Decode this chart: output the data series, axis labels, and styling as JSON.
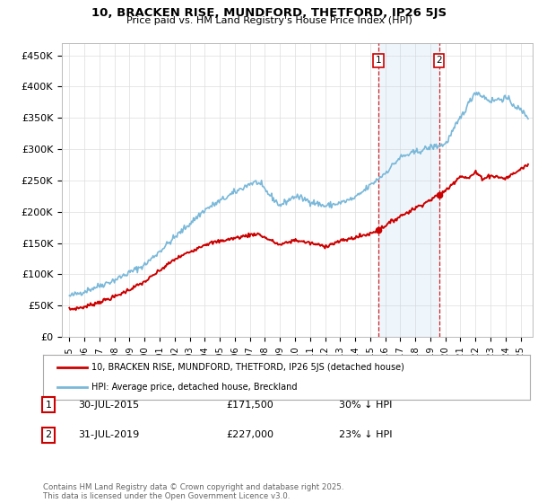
{
  "title": "10, BRACKEN RISE, MUNDFORD, THETFORD, IP26 5JS",
  "subtitle": "Price paid vs. HM Land Registry's House Price Index (HPI)",
  "ylabel_ticks": [
    "£0",
    "£50K",
    "£100K",
    "£150K",
    "£200K",
    "£250K",
    "£300K",
    "£350K",
    "£400K",
    "£450K"
  ],
  "ytick_values": [
    0,
    50000,
    100000,
    150000,
    200000,
    250000,
    300000,
    350000,
    400000,
    450000
  ],
  "ylim": [
    0,
    470000
  ],
  "xlim_start": 1994.5,
  "xlim_end": 2025.8,
  "purchase1": {
    "date_x": 2015.57,
    "price": 171500,
    "label": "1",
    "date_str": "30-JUL-2015",
    "price_str": "£171,500",
    "pct": "30% ↓ HPI"
  },
  "purchase2": {
    "date_x": 2019.57,
    "price": 227000,
    "label": "2",
    "date_str": "31-JUL-2019",
    "price_str": "£227,000",
    "pct": "23% ↓ HPI"
  },
  "hpi_color": "#7ab8d9",
  "price_color": "#cc0000",
  "vline_color": "#cc0000",
  "legend_label_price": "10, BRACKEN RISE, MUNDFORD, THETFORD, IP26 5JS (detached house)",
  "legend_label_hpi": "HPI: Average price, detached house, Breckland",
  "footer": "Contains HM Land Registry data © Crown copyright and database right 2025.\nThis data is licensed under the Open Government Licence v3.0.",
  "background_color": "#ffffff",
  "plot_bg_color": "#ffffff"
}
